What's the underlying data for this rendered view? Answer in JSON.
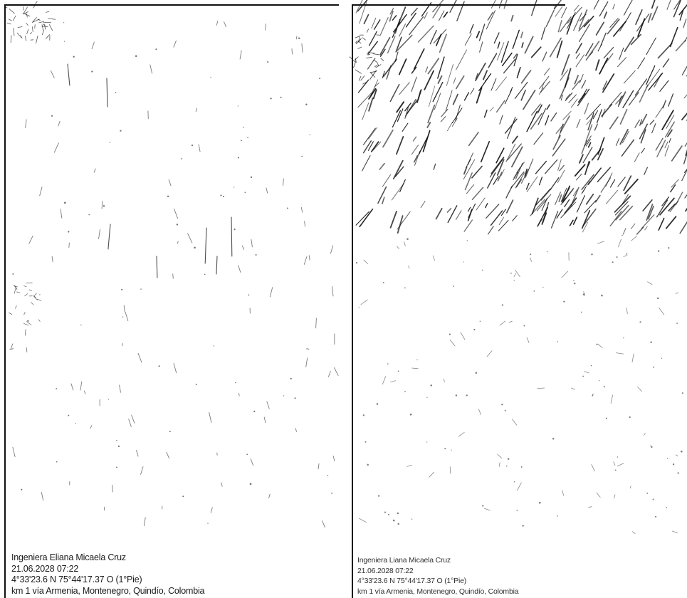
{
  "photos": [
    {
      "caption": {
        "lines": [
          "Ingeniera Eliana Micaela Cruz",
          "21.06.2028 07:22",
          "4°33'23.6 N 75°44'17.37 O (1°Pie)",
          "km 1 vía Armenia, Montenegro, Quindío, Colombia"
        ]
      },
      "tone": "sparse-texture"
    },
    {
      "caption": {
        "lines": [
          "Ingeniera Liana Micaela Cruz",
          "21.06.2028 07:22",
          "4°33'23.6 N 75°44'17.37 O (1°Pie)",
          "km 1 vía Armenia, Montenegro, Quindío, Colombia"
        ]
      },
      "tone": "dense-vegetation-texture"
    }
  ],
  "colors": {
    "background": "#ffffff",
    "ink": "#111111"
  }
}
